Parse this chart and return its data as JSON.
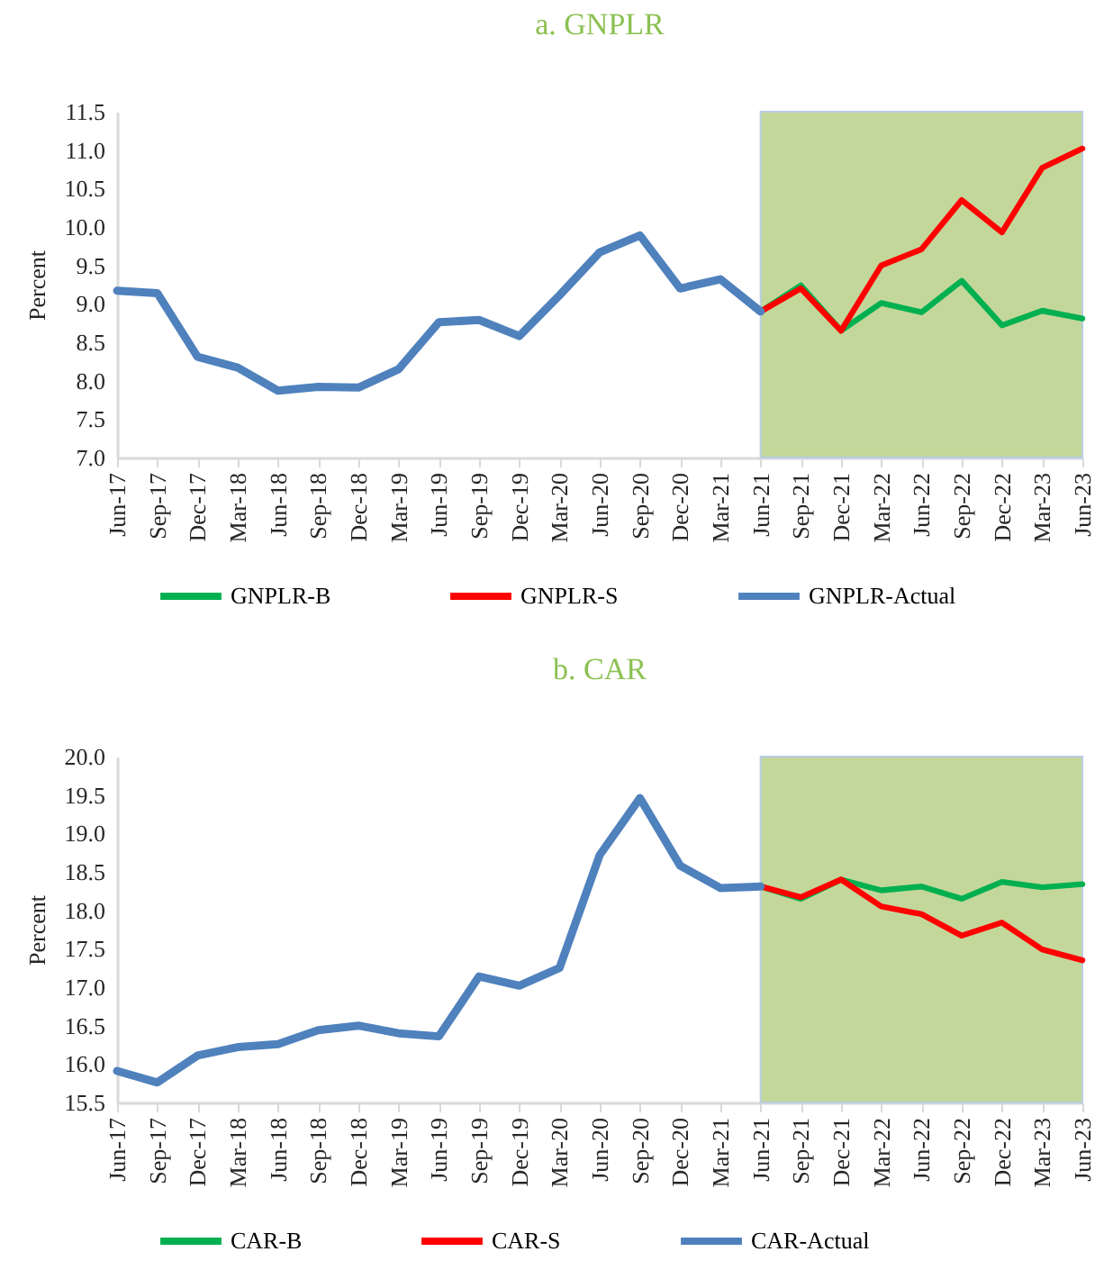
{
  "chart_data": [
    {
      "type": "line",
      "title": "a. GNPLR",
      "ylabel": "Percent",
      "legend": "bottom",
      "categories": [
        "Jun-17",
        "Sep-17",
        "Dec-17",
        "Mar-18",
        "Jun-18",
        "Sep-18",
        "Dec-18",
        "Mar-19",
        "Jun-19",
        "Sep-19",
        "Dec-19",
        "Mar-20",
        "Jun-20",
        "Sep-20",
        "Dec-20",
        "Mar-21",
        "Jun-21",
        "Sep-21",
        "Dec-21",
        "Mar-22",
        "Jun-22",
        "Sep-22",
        "Dec-22",
        "Mar-23",
        "Jun-23"
      ],
      "ylim": [
        7,
        11.5
      ],
      "yticks": [
        {
          "value": 7,
          "label": "7.0"
        },
        7.5,
        {
          "value": 8,
          "label": "8.0"
        },
        8.5,
        {
          "value": 9,
          "label": "9.0"
        },
        9.5,
        {
          "value": 10,
          "label": "10.0"
        },
        10.5,
        {
          "value": 11,
          "label": "11.0"
        },
        11.5
      ],
      "bands": [
        {
          "axis": "x",
          "from": "Jun-21",
          "to": "Jun-23",
          "color": "#c4d79b"
        }
      ],
      "series": [
        {
          "name": "GNPLR-B",
          "color": "#00b050",
          "values": [
            null,
            null,
            null,
            null,
            null,
            null,
            null,
            null,
            null,
            null,
            null,
            null,
            null,
            null,
            null,
            null,
            8.9,
            9.24,
            8.65,
            9.01,
            8.89,
            9.3,
            8.72,
            8.91,
            8.81
          ]
        },
        {
          "name": "GNPLR-S",
          "color": "#ff0000",
          "values": [
            null,
            null,
            null,
            null,
            null,
            null,
            null,
            null,
            null,
            null,
            null,
            null,
            null,
            null,
            null,
            null,
            8.9,
            9.2,
            8.65,
            9.5,
            9.71,
            10.35,
            9.93,
            10.77,
            11.02
          ]
        },
        {
          "name": "GNPLR-Actual",
          "color": "#4f81bd",
          "values": [
            9.17,
            9.14,
            8.31,
            8.17,
            7.87,
            7.92,
            7.91,
            8.15,
            8.76,
            8.79,
            8.58,
            9.11,
            9.67,
            9.89,
            9.2,
            9.32,
            8.9,
            null,
            null,
            null,
            null,
            null,
            null,
            null,
            null
          ]
        }
      ]
    },
    {
      "type": "line",
      "title": "b. CAR",
      "ylabel": "Percent",
      "legend": "bottom",
      "categories": [
        "Jun-17",
        "Sep-17",
        "Dec-17",
        "Mar-18",
        "Jun-18",
        "Sep-18",
        "Dec-18",
        "Mar-19",
        "Jun-19",
        "Sep-19",
        "Dec-19",
        "Mar-20",
        "Jun-20",
        "Sep-20",
        "Dec-20",
        "Mar-21",
        "Jun-21",
        "Sep-21",
        "Dec-21",
        "Mar-22",
        "Jun-22",
        "Sep-22",
        "Dec-22",
        "Mar-23",
        "Jun-23"
      ],
      "ylim": [
        15.5,
        20
      ],
      "yticks": [
        15.5,
        {
          "value": 16,
          "label": "16.0"
        },
        16.5,
        {
          "value": 17,
          "label": "17.0"
        },
        17.5,
        {
          "value": 18,
          "label": "18.0"
        },
        18.5,
        {
          "value": 19,
          "label": "19.0"
        },
        19.5,
        {
          "value": 20,
          "label": "20.0"
        }
      ],
      "bands": [
        {
          "axis": "x",
          "from": "Jun-21",
          "to": "Jun-23",
          "color": "#c4d79b"
        }
      ],
      "series": [
        {
          "name": "CAR-B",
          "color": "#00b050",
          "values": [
            null,
            null,
            null,
            null,
            null,
            null,
            null,
            null,
            null,
            null,
            null,
            null,
            null,
            null,
            null,
            null,
            18.31,
            18.15,
            18.4,
            18.26,
            18.31,
            18.15,
            18.37,
            18.3,
            18.34
          ]
        },
        {
          "name": "CAR-S",
          "color": "#ff0000",
          "values": [
            null,
            null,
            null,
            null,
            null,
            null,
            null,
            null,
            null,
            null,
            null,
            null,
            null,
            null,
            null,
            null,
            18.31,
            18.17,
            18.4,
            18.05,
            17.95,
            17.67,
            17.84,
            17.49,
            17.35
          ]
        },
        {
          "name": "CAR-Actual",
          "color": "#4f81bd",
          "values": [
            15.91,
            15.76,
            16.11,
            16.22,
            16.26,
            16.44,
            16.5,
            16.4,
            16.36,
            17.14,
            17.02,
            17.25,
            18.72,
            19.46,
            18.58,
            18.29,
            18.31,
            null,
            null,
            null,
            null,
            null,
            null,
            null,
            null
          ]
        }
      ]
    }
  ]
}
